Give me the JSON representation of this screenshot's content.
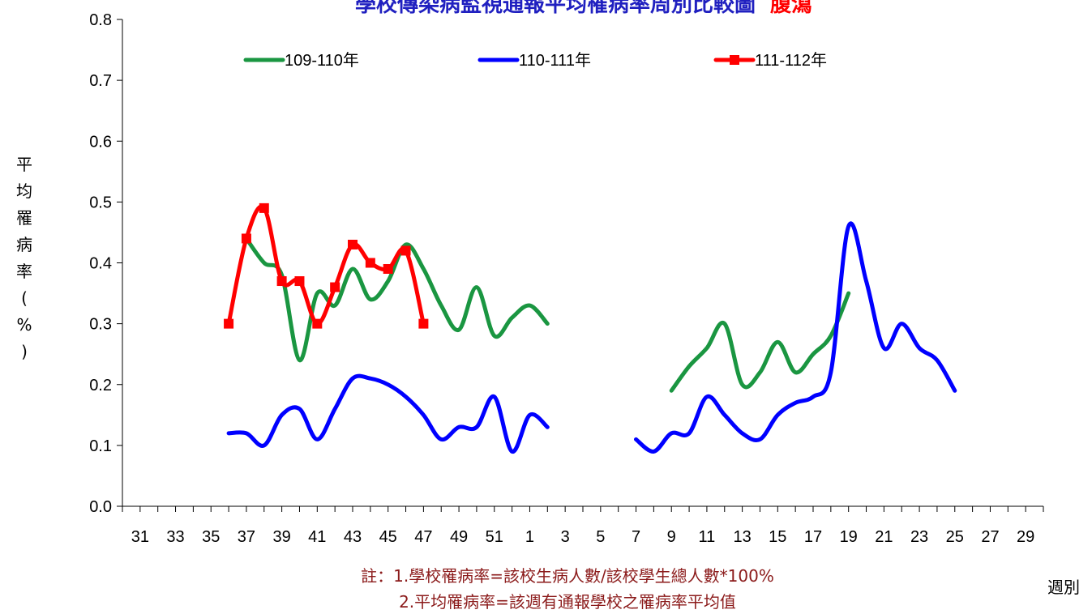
{
  "chart_data": {
    "type": "line",
    "title": "學校傳染病監視通報平均罹病率周別比較圖",
    "title_suffix": "腹瀉",
    "colors": {
      "title": "#2020c0",
      "title_suffix": "#ff0000"
    },
    "ylabel": "平均罹病率(%)",
    "xlabel": "週別",
    "ylim": [
      0,
      0.8
    ],
    "yticks": [
      "0.0",
      "0.1",
      "0.2",
      "0.3",
      "0.4",
      "0.5",
      "0.6",
      "0.7",
      "0.8"
    ],
    "xticks": [
      "31",
      "33",
      "35",
      "37",
      "39",
      "41",
      "43",
      "45",
      "47",
      "49",
      "51",
      "1",
      "3",
      "5",
      "7",
      "9",
      "11",
      "13",
      "15",
      "17",
      "19",
      "21",
      "23",
      "25",
      "27",
      "29"
    ],
    "grid": false,
    "legend_position": "top",
    "series": [
      {
        "name": "109-110年",
        "color": "#1a9641",
        "marker": "none",
        "segments": [
          {
            "x": [
              37,
              38,
              39,
              40,
              41,
              42,
              43,
              44,
              45,
              46,
              47,
              48,
              49,
              50,
              51,
              52,
              53,
              54
            ],
            "y": [
              0.44,
              0.4,
              0.38,
              0.24,
              0.35,
              0.33,
              0.39,
              0.34,
              0.37,
              0.43,
              0.39,
              0.33,
              0.29,
              0.36,
              0.28,
              0.31,
              0.33,
              0.3
            ]
          },
          {
            "x": [
              61,
              62,
              63,
              64,
              65,
              66,
              67,
              68,
              69,
              70,
              71
            ],
            "y": [
              0.19,
              0.23,
              0.26,
              0.3,
              0.2,
              0.22,
              0.27,
              0.22,
              0.25,
              0.28,
              0.35
            ]
          }
        ]
      },
      {
        "name": "110-111年",
        "color": "#0000ff",
        "marker": "none",
        "segments": [
          {
            "x": [
              36,
              37,
              38,
              39,
              40,
              41,
              42,
              43,
              44,
              45,
              46,
              47,
              48,
              49,
              50,
              51,
              52,
              53,
              54
            ],
            "y": [
              0.12,
              0.12,
              0.1,
              0.15,
              0.16,
              0.11,
              0.16,
              0.21,
              0.21,
              0.2,
              0.18,
              0.15,
              0.11,
              0.13,
              0.13,
              0.18,
              0.09,
              0.15,
              0.13
            ]
          },
          {
            "x": [
              59,
              60,
              61,
              62,
              63,
              64,
              65,
              66,
              67,
              68,
              69,
              70,
              71,
              72,
              73,
              74,
              75,
              76,
              77
            ],
            "y": [
              0.11,
              0.09,
              0.12,
              0.12,
              0.18,
              0.15,
              0.12,
              0.11,
              0.15,
              0.17,
              0.18,
              0.22,
              0.46,
              0.37,
              0.26,
              0.3,
              0.26,
              0.24,
              0.19
            ]
          }
        ]
      },
      {
        "name": "111-112年",
        "color": "#ff0000",
        "marker": "square",
        "segments": [
          {
            "x": [
              36,
              37,
              38,
              39,
              40,
              41,
              42,
              43,
              44,
              45,
              46,
              47
            ],
            "y": [
              0.3,
              0.44,
              0.49,
              0.37,
              0.37,
              0.3,
              0.36,
              0.43,
              0.4,
              0.39,
              0.42,
              0.3
            ]
          }
        ]
      }
    ],
    "notes": [
      "註：1.學校罹病率=該校生病人數/該校學生總人數*100%",
      "2.平均罹病率=該週有通報學校之罹病率平均值"
    ]
  }
}
